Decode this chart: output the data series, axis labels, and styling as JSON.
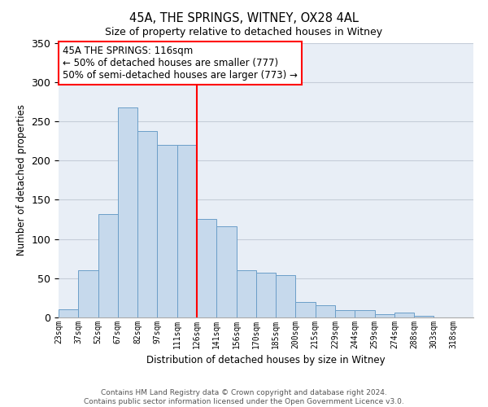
{
  "title": "45A, THE SPRINGS, WITNEY, OX28 4AL",
  "subtitle": "Size of property relative to detached houses in Witney",
  "xlabel": "Distribution of detached houses by size in Witney",
  "ylabel": "Number of detached properties",
  "categories": [
    "23sqm",
    "37sqm",
    "52sqm",
    "67sqm",
    "82sqm",
    "97sqm",
    "111sqm",
    "126sqm",
    "141sqm",
    "156sqm",
    "170sqm",
    "185sqm",
    "200sqm",
    "215sqm",
    "229sqm",
    "244sqm",
    "259sqm",
    "274sqm",
    "288sqm",
    "303sqm",
    "318sqm"
  ],
  "bar_heights": [
    10,
    60,
    132,
    268,
    237,
    220,
    220,
    125,
    116,
    60,
    57,
    54,
    20,
    16,
    9,
    9,
    4,
    6,
    2,
    0,
    0
  ],
  "bar_color": "#c6d9ec",
  "bar_edge_color": "#6b9ec8",
  "vline_color": "red",
  "ylim": [
    0,
    350
  ],
  "yticks": [
    0,
    50,
    100,
    150,
    200,
    250,
    300,
    350
  ],
  "annotation_title": "45A THE SPRINGS: 116sqm",
  "annotation_line1": "← 50% of detached houses are smaller (777)",
  "annotation_line2": "50% of semi-detached houses are larger (773) →",
  "annotation_box_color": "red",
  "footer_line1": "Contains HM Land Registry data © Crown copyright and database right 2024.",
  "footer_line2": "Contains public sector information licensed under the Open Government Licence v3.0.",
  "bg_color": "#e8eef6",
  "grid_color": "#c5cdd8"
}
